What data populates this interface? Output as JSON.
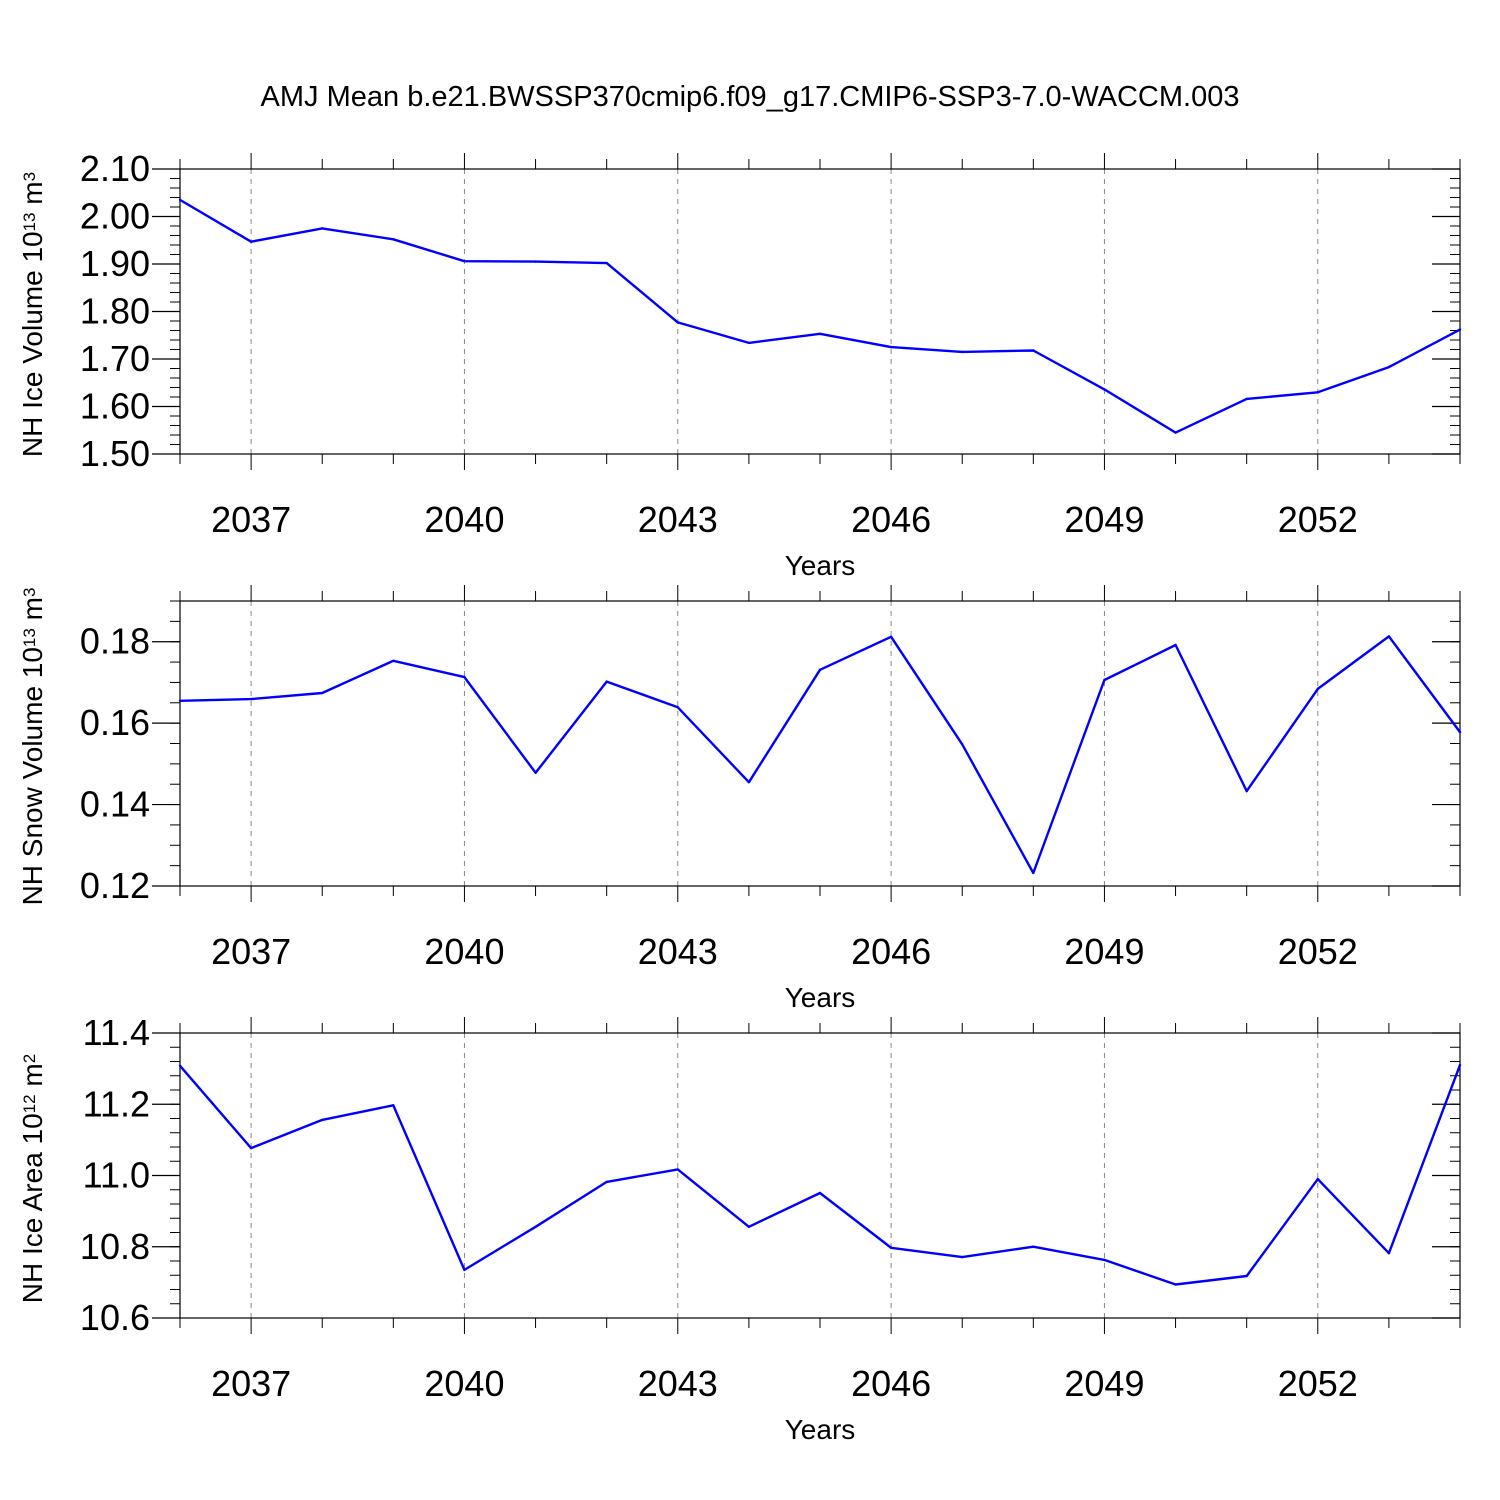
{
  "title": "AMJ Mean b.e21.BWSSP370cmip6.f09_g17.CMIP6-SSP3-7.0-WACCM.003",
  "line_color": "#0000ff",
  "grid_color": "#888888",
  "chart_data": [
    {
      "type": "line",
      "xlabel": "Years",
      "ylabel": {
        "main": "NH Ice Volume 10",
        "sup1": "13",
        "unit": " m",
        "sup2": "3"
      },
      "xlim": [
        2036,
        2054
      ],
      "ylim": [
        1.5,
        2.1
      ],
      "yticks": [
        1.5,
        1.6,
        1.7,
        1.8,
        1.9,
        2.0,
        2.1
      ],
      "ytick_labels": [
        "1.50",
        "1.60",
        "1.70",
        "1.80",
        "1.90",
        "2.00",
        "2.10"
      ],
      "yminor_step": 0.02,
      "xticks": [
        2037,
        2040,
        2043,
        2046,
        2049,
        2052
      ],
      "xtick_labels": [
        "2037",
        "2040",
        "2043",
        "2046",
        "2049",
        "2052"
      ],
      "grid_x": "dashed at major x ticks",
      "x": [
        2036,
        2037,
        2038,
        2039,
        2040,
        2041,
        2042,
        2043,
        2044,
        2045,
        2046,
        2047,
        2048,
        2049,
        2050,
        2051,
        2052,
        2053,
        2054
      ],
      "values": [
        2.035,
        1.947,
        1.975,
        1.952,
        1.906,
        1.905,
        1.902,
        1.777,
        1.734,
        1.753,
        1.725,
        1.715,
        1.718,
        1.636,
        1.545,
        1.616,
        1.63,
        1.683,
        1.762
      ]
    },
    {
      "type": "line",
      "xlabel": "Years",
      "ylabel": {
        "main": "NH Snow Volume 10",
        "sup1": "13",
        "unit": " m",
        "sup2": "3"
      },
      "xlim": [
        2036,
        2054
      ],
      "ylim": [
        0.12,
        0.19
      ],
      "yticks": [
        0.12,
        0.14,
        0.16,
        0.18
      ],
      "ytick_labels": [
        "0.12",
        "0.14",
        "0.16",
        "0.18"
      ],
      "yminor_step": 0.005,
      "xticks": [
        2037,
        2040,
        2043,
        2046,
        2049,
        2052
      ],
      "xtick_labels": [
        "2037",
        "2040",
        "2043",
        "2046",
        "2049",
        "2052"
      ],
      "grid_x": "dashed at major x ticks",
      "x": [
        2036,
        2037,
        2038,
        2039,
        2040,
        2041,
        2042,
        2043,
        2044,
        2045,
        2046,
        2047,
        2048,
        2049,
        2050,
        2051,
        2052,
        2053,
        2054
      ],
      "values": [
        0.1655,
        0.1659,
        0.1674,
        0.1753,
        0.1713,
        0.1478,
        0.1702,
        0.1639,
        0.1455,
        0.1731,
        0.1812,
        0.1548,
        0.1232,
        0.1706,
        0.1792,
        0.1433,
        0.1684,
        0.1813,
        0.1578
      ]
    },
    {
      "type": "line",
      "xlabel": "Years",
      "ylabel": {
        "main": "NH Ice Area 10",
        "sup1": "12",
        "unit": " m",
        "sup2": "2"
      },
      "xlim": [
        2036,
        2054
      ],
      "ylim": [
        10.6,
        11.4
      ],
      "yticks": [
        10.6,
        10.8,
        11.0,
        11.2,
        11.4
      ],
      "ytick_labels": [
        "10.6",
        "10.8",
        "11.0",
        "11.2",
        "11.4"
      ],
      "yminor_step": 0.04,
      "xticks": [
        2037,
        2040,
        2043,
        2046,
        2049,
        2052
      ],
      "xtick_labels": [
        "2037",
        "2040",
        "2043",
        "2046",
        "2049",
        "2052"
      ],
      "grid_x": "dashed at major x ticks",
      "x": [
        2036,
        2037,
        2038,
        2039,
        2040,
        2041,
        2042,
        2043,
        2044,
        2045,
        2046,
        2047,
        2048,
        2049,
        2050,
        2051,
        2052,
        2053,
        2054
      ],
      "values": [
        11.308,
        11.077,
        11.156,
        11.197,
        10.735,
        10.856,
        10.982,
        11.017,
        10.856,
        10.951,
        10.797,
        10.771,
        10.8,
        10.763,
        10.694,
        10.718,
        10.99,
        10.782,
        11.31
      ]
    }
  ]
}
